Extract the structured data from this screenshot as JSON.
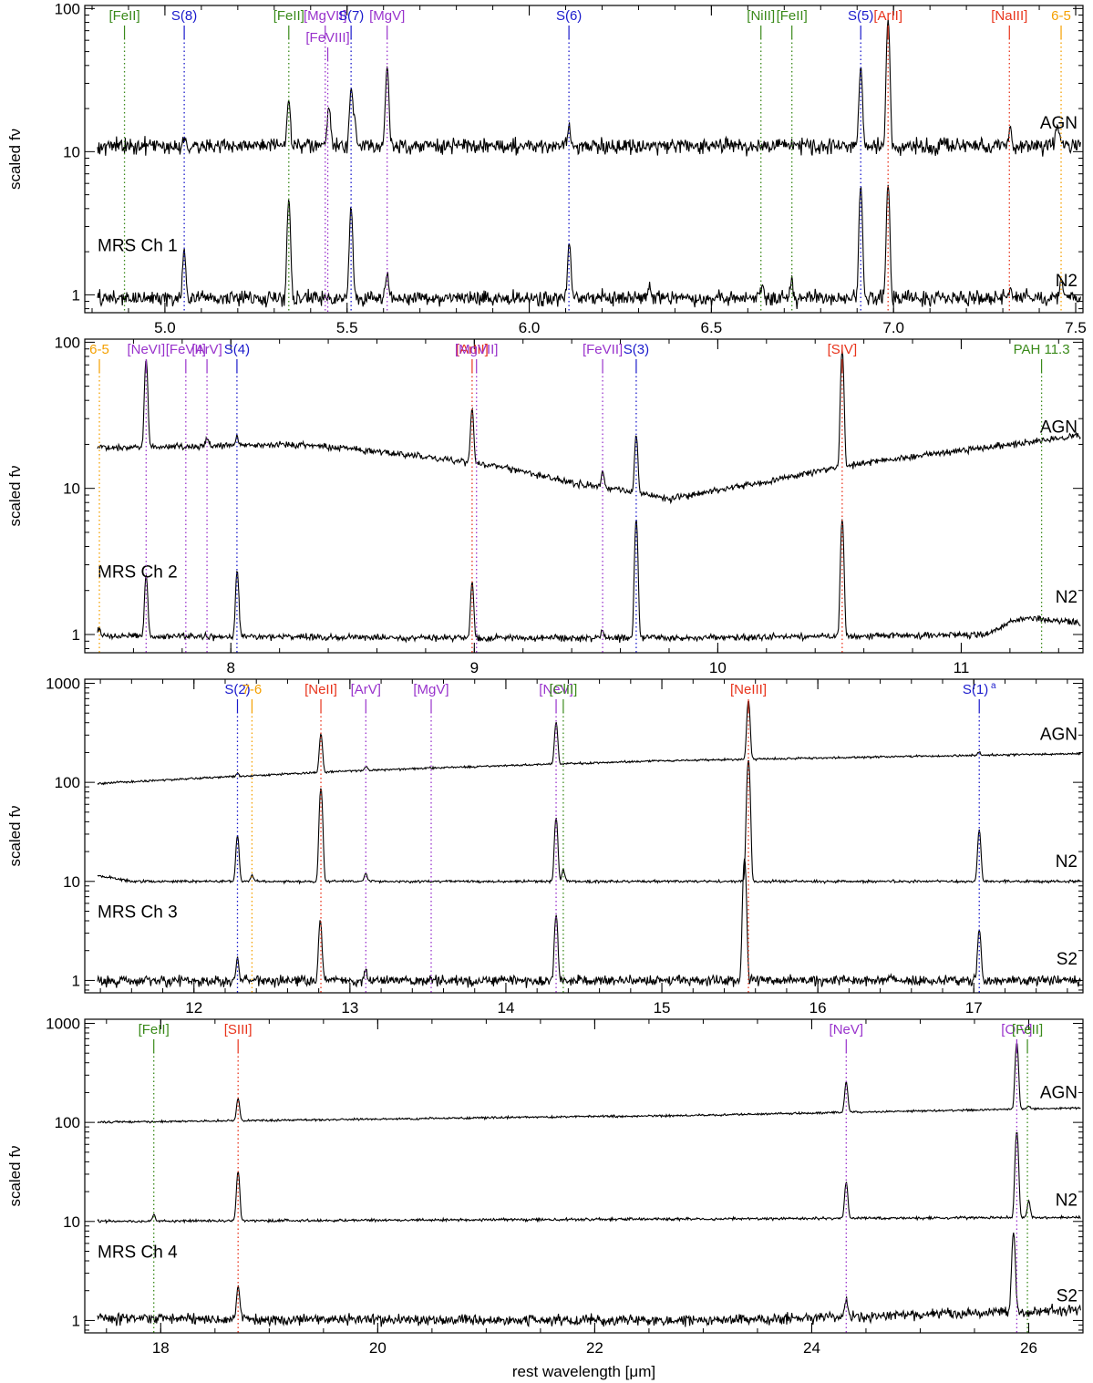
{
  "colors": {
    "H2": "#1a1acc",
    "fine_purple": "#9933cc",
    "red": "#e8341c",
    "green": "#3a8a1a",
    "orange": "#f5a000",
    "spectrum": "#000000"
  },
  "chart_data": [
    {
      "type": "line",
      "panel_label": "MRS Ch 1",
      "ylabel": "scaled fν",
      "xlabel": "",
      "log_y": true,
      "xlim": [
        4.78,
        7.52
      ],
      "ylim": [
        0.75,
        105
      ],
      "xticks": [
        5.0,
        5.5,
        6.0,
        6.5,
        7.0,
        7.5
      ],
      "xtick_labels": [
        "5.0",
        "5.5",
        "6.0",
        "6.5",
        "7.0",
        "7.5"
      ],
      "yticks": [
        1,
        10,
        100
      ],
      "ytick_labels": [
        "1",
        "10",
        "100"
      ],
      "series": [
        {
          "name": "AGN",
          "baseline": 11,
          "label_y": 14.5,
          "noise": 0.06,
          "peaks": [
            [
              5.053,
              1.4
            ],
            [
              5.34,
              12
            ],
            [
              5.45,
              10
            ],
            [
              5.511,
              16
            ],
            [
              5.52,
              6
            ],
            [
              5.61,
              28
            ],
            [
              6.11,
              4
            ],
            [
              6.91,
              28
            ],
            [
              6.985,
              72
            ],
            [
              7.32,
              4
            ],
            [
              7.45,
              5
            ]
          ]
        },
        {
          "name": "N2",
          "baseline": 0.95,
          "label_y": 1.15,
          "noise": 0.06,
          "peaks": [
            [
              5.053,
              1.1
            ],
            [
              5.34,
              3.7
            ],
            [
              5.511,
              3.2
            ],
            [
              5.61,
              0.5
            ],
            [
              6.11,
              1.4
            ],
            [
              6.33,
              0.25
            ],
            [
              6.64,
              0.3
            ],
            [
              6.72,
              0.3
            ],
            [
              6.91,
              4.8
            ],
            [
              6.985,
              5.0
            ],
            [
              7.32,
              0.2
            ],
            [
              7.46,
              0.3
            ]
          ]
        }
      ],
      "lines": [
        {
          "label": "[FeII]",
          "x": 4.889,
          "color": "green",
          "tier": 0
        },
        {
          "label": "S(8)",
          "x": 5.053,
          "color": "H2",
          "tier": 0
        },
        {
          "label": "[FeII]",
          "x": 5.34,
          "color": "green",
          "tier": 0
        },
        {
          "label": "[MgVII]",
          "x": 5.44,
          "color": "fine_purple",
          "tier": 0
        },
        {
          "label": "[FeVIII]",
          "x": 5.447,
          "color": "fine_purple",
          "tier": 1
        },
        {
          "label": "S(7)",
          "x": 5.511,
          "color": "H2",
          "tier": 0
        },
        {
          "label": "[MgV]",
          "x": 5.61,
          "color": "fine_purple",
          "tier": 0
        },
        {
          "label": "S(6)",
          "x": 6.109,
          "color": "H2",
          "tier": 0
        },
        {
          "label": "[NiII]",
          "x": 6.636,
          "color": "green",
          "tier": 0
        },
        {
          "label": "[FeII]",
          "x": 6.721,
          "color": "green",
          "tier": 0
        },
        {
          "label": "S(5)",
          "x": 6.91,
          "color": "H2",
          "tier": 0
        },
        {
          "label": "[ArII]",
          "x": 6.985,
          "color": "red",
          "tier": 0
        },
        {
          "label": "[NaIII]",
          "x": 7.318,
          "color": "red",
          "tier": 0
        },
        {
          "label": "6-5",
          "x": 7.46,
          "color": "orange",
          "tier": 0
        }
      ]
    },
    {
      "type": "line",
      "panel_label": "MRS Ch 2",
      "ylabel": "scaled fν",
      "xlabel": "",
      "log_y": true,
      "xlim": [
        7.4,
        11.5
      ],
      "ylim": [
        0.75,
        105
      ],
      "xticks": [
        8,
        9,
        10,
        11
      ],
      "xtick_labels": [
        "8",
        "9",
        "10",
        "11"
      ],
      "yticks": [
        1,
        10,
        100
      ],
      "ytick_labels": [
        "1",
        "10",
        "100"
      ],
      "series": [
        {
          "name": "AGN",
          "continuum": [
            [
              7.4,
              19
            ],
            [
              8.3,
              20
            ],
            [
              9.0,
              15
            ],
            [
              9.4,
              11
            ],
            [
              9.8,
              8.5
            ],
            [
              10.2,
              11
            ],
            [
              10.6,
              15
            ],
            [
              11.0,
              18
            ],
            [
              11.3,
              21
            ],
            [
              11.5,
              23
            ]
          ],
          "label_y": 24,
          "noise": 0.025,
          "peaks": [
            [
              7.652,
              58
            ],
            [
              7.904,
              2.5
            ],
            [
              8.026,
              3
            ],
            [
              8.991,
              20
            ],
            [
              9.527,
              3
            ],
            [
              9.665,
              14
            ],
            [
              10.511,
              75
            ]
          ]
        },
        {
          "name": "N2",
          "continuum": [
            [
              7.4,
              0.98
            ],
            [
              9.0,
              0.95
            ],
            [
              10.0,
              0.95
            ],
            [
              11.1,
              1.0
            ],
            [
              11.25,
              1.3
            ],
            [
              11.5,
              1.2
            ]
          ],
          "label_y": 1.65,
          "noise": 0.025,
          "peaks": [
            [
              7.459,
              0.12
            ],
            [
              7.652,
              1.6
            ],
            [
              8.026,
              1.8
            ],
            [
              8.991,
              1.35
            ],
            [
              9.527,
              0.12
            ],
            [
              9.665,
              5.2
            ],
            [
              10.511,
              5.2
            ]
          ]
        }
      ],
      "lines": [
        {
          "label": "6-5",
          "x": 7.46,
          "color": "orange",
          "tier": 0
        },
        {
          "label": "[NeVI]",
          "x": 7.652,
          "color": "fine_purple",
          "tier": 0
        },
        {
          "label": "[FeVII]",
          "x": 7.815,
          "color": "fine_purple",
          "tier": 0
        },
        {
          "label": "[ArV]",
          "x": 7.902,
          "color": "fine_purple",
          "tier": 0
        },
        {
          "label": "S(4)",
          "x": 8.025,
          "color": "H2",
          "tier": 0
        },
        {
          "label": "[ArIII]",
          "x": 8.991,
          "color": "red",
          "tier": 0
        },
        {
          "label": "[MgVII]",
          "x": 9.009,
          "color": "fine_purple",
          "tier": 0
        },
        {
          "label": "[FeVII]",
          "x": 9.527,
          "color": "fine_purple",
          "tier": 0
        },
        {
          "label": "S(3)",
          "x": 9.665,
          "color": "H2",
          "tier": 0
        },
        {
          "label": "[SIV]",
          "x": 10.511,
          "color": "red",
          "tier": 0
        },
        {
          "label": "PAH 11.3",
          "x": 11.33,
          "color": "green",
          "tier": 0
        }
      ]
    },
    {
      "type": "line",
      "panel_label": "MRS Ch 3",
      "ylabel": "scaled fν",
      "xlabel": "",
      "log_y": true,
      "xlim": [
        11.3,
        17.7
      ],
      "ylim": [
        0.75,
        1100
      ],
      "xticks": [
        12,
        13,
        14,
        15,
        16,
        17
      ],
      "xtick_labels": [
        "12",
        "13",
        "14",
        "15",
        "16",
        "17"
      ],
      "yticks": [
        1,
        10,
        100,
        1000
      ],
      "ytick_labels": [
        "1",
        "10",
        "100",
        "1000"
      ],
      "series": [
        {
          "name": "AGN",
          "continuum": [
            [
              11.3,
              95
            ],
            [
              13.0,
              130
            ],
            [
              15.0,
              165
            ],
            [
              17.7,
              195
            ]
          ],
          "label_y": 270,
          "noise": 0.012,
          "peaks": [
            [
              12.279,
              8
            ],
            [
              12.814,
              180
            ],
            [
              13.102,
              12
            ],
            [
              14.322,
              250
            ],
            [
              15.555,
              500
            ],
            [
              17.035,
              15
            ]
          ]
        },
        {
          "name": "N2",
          "continuum": [
            [
              11.3,
              12
            ],
            [
              11.6,
              10
            ],
            [
              17.7,
              10
            ]
          ],
          "label_y": 14,
          "noise": 0.015,
          "peaks": [
            [
              12.279,
              19
            ],
            [
              12.372,
              1.5
            ],
            [
              12.814,
              78
            ],
            [
              13.102,
              2
            ],
            [
              14.322,
              34
            ],
            [
              14.368,
              3
            ],
            [
              15.555,
              160
            ],
            [
              17.035,
              23
            ]
          ]
        },
        {
          "name": "S2",
          "continuum": [
            [
              11.3,
              1.0
            ],
            [
              17.7,
              1.0
            ]
          ],
          "label_y": 1.45,
          "noise": 0.06,
          "peaks": [
            [
              12.279,
              0.6
            ],
            [
              12.81,
              3.0
            ],
            [
              13.1,
              0.3
            ],
            [
              14.322,
              3.6
            ],
            [
              15.53,
              16
            ],
            [
              17.035,
              2.3
            ]
          ]
        }
      ],
      "lines": [
        {
          "label": "S(2)",
          "x": 12.279,
          "color": "H2",
          "tier": 0
        },
        {
          "label": "7-6",
          "x": 12.372,
          "color": "orange",
          "tier": 0
        },
        {
          "label": "[NeII]",
          "x": 12.814,
          "color": "red",
          "tier": 0
        },
        {
          "label": "[ArV]",
          "x": 13.102,
          "color": "fine_purple",
          "tier": 0
        },
        {
          "label": "[MgV]",
          "x": 13.521,
          "color": "fine_purple",
          "tier": 0
        },
        {
          "label": "[NeV]",
          "x": 14.322,
          "color": "fine_purple",
          "tier": 0
        },
        {
          "label": "[ClII]",
          "x": 14.368,
          "color": "green",
          "tier": 0
        },
        {
          "label": "[NeIII]",
          "x": 15.555,
          "color": "red",
          "tier": 0
        },
        {
          "label": "S(1)",
          "x": 17.035,
          "color": "H2",
          "tier": 0,
          "superscript": "a"
        }
      ]
    },
    {
      "type": "line",
      "panel_label": "MRS Ch 4",
      "ylabel": "scaled fν",
      "xlabel": "rest wavelength [μm]",
      "log_y": true,
      "xlim": [
        17.3,
        26.5
      ],
      "ylim": [
        0.75,
        1100
      ],
      "xticks": [
        18,
        20,
        22,
        24,
        26
      ],
      "xtick_labels": [
        "18",
        "20",
        "22",
        "24",
        "26"
      ],
      "yticks": [
        1,
        10,
        100,
        1000
      ],
      "ytick_labels": [
        "1",
        "10",
        "100",
        "1000"
      ],
      "series": [
        {
          "name": "AGN",
          "continuum": [
            [
              17.3,
              100
            ],
            [
              20.0,
              108
            ],
            [
              23.0,
              118
            ],
            [
              26.5,
              140
            ]
          ],
          "label_y": 175,
          "noise": 0.012,
          "peaks": [
            [
              18.713,
              70
            ],
            [
              24.318,
              130
            ],
            [
              25.89,
              500
            ],
            [
              26.0,
              10
            ]
          ]
        },
        {
          "name": "N2",
          "continuum": [
            [
              17.3,
              10
            ],
            [
              26.5,
              11
            ]
          ],
          "label_y": 14.5,
          "noise": 0.015,
          "peaks": [
            [
              17.936,
              1.6
            ],
            [
              18.713,
              22
            ],
            [
              24.318,
              14
            ],
            [
              25.89,
              70
            ],
            [
              26.0,
              5
            ]
          ]
        },
        {
          "name": "S2",
          "continuum": [
            [
              17.3,
              1.05
            ],
            [
              23.0,
              1.0
            ],
            [
              24.6,
              1.1
            ],
            [
              26.5,
              1.3
            ]
          ],
          "label_y": 1.55,
          "noise": 0.06,
          "peaks": [
            [
              18.713,
              1.2
            ],
            [
              24.318,
              0.55
            ],
            [
              25.86,
              6.5
            ]
          ]
        }
      ],
      "lines": [
        {
          "label": "[FeII]",
          "x": 17.936,
          "color": "green",
          "tier": 0
        },
        {
          "label": "[SIII]",
          "x": 18.713,
          "color": "red",
          "tier": 0
        },
        {
          "label": "[NeV]",
          "x": 24.318,
          "color": "fine_purple",
          "tier": 0
        },
        {
          "label": "[OIV]",
          "x": 25.89,
          "color": "fine_purple",
          "tier": 0
        },
        {
          "label": "[FeII]",
          "x": 25.988,
          "color": "green",
          "tier": 0
        }
      ]
    }
  ]
}
